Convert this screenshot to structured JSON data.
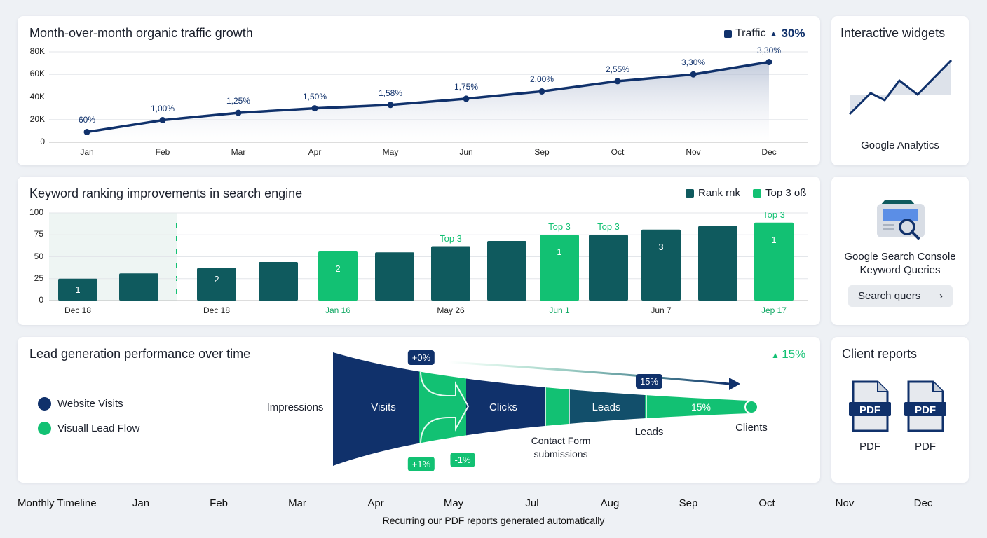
{
  "traffic": {
    "title": "Month-over-month organic traffic growth",
    "legend": "Traffic",
    "change": "30%",
    "color": "#10316b",
    "chart_data": {
      "type": "area",
      "x": [
        "Jan",
        "Feb",
        "Mar",
        "Apr",
        "May",
        "Jun",
        "Sep",
        "Oct",
        "Nov",
        "Dec"
      ],
      "values": [
        9000,
        19500,
        26000,
        30000,
        33000,
        38500,
        45000,
        54000,
        60000,
        71000
      ],
      "labels": [
        "60%",
        "1,00%",
        "1,25%",
        "1,50%",
        "1,58%",
        "1,75%",
        "2,00%",
        "2,55%",
        "3,30%",
        "3,30%"
      ],
      "yticks": [
        "0",
        "20K",
        "40K",
        "60K",
        "80K"
      ],
      "ylim": [
        0,
        80000
      ],
      "grid": true,
      "legend": "top-right"
    }
  },
  "ranking": {
    "title": "Keyword ranking improvements in search engine",
    "legend": [
      "Rank rnk",
      "Top 3 oß"
    ],
    "colors": {
      "rank": "#0f5a5e",
      "top3": "#12c173"
    },
    "chart_data": {
      "type": "bar",
      "values": [
        25,
        31,
        37,
        44,
        56,
        55,
        62,
        68,
        75,
        75,
        81,
        85,
        89
      ],
      "top3": [
        false,
        false,
        false,
        false,
        true,
        false,
        false,
        false,
        true,
        false,
        false,
        false,
        true
      ],
      "inner_labels": [
        "1",
        "",
        "2",
        "",
        "2",
        "",
        "",
        "",
        "1",
        "",
        "3",
        "",
        "1"
      ],
      "top_labels": [
        "",
        "",
        "",
        "",
        "",
        "",
        "Top 3",
        "",
        "Top 3",
        "Top 3",
        "",
        "",
        "Top 3"
      ],
      "xlabels": [
        "Dec 18",
        "",
        "Dec 18",
        "",
        "Jan 16",
        "",
        "May 26",
        "",
        "Jun 1",
        "",
        "Jun 7",
        "",
        "Jep 17"
      ],
      "yticks": [
        "0",
        "25",
        "50",
        "75",
        "100"
      ],
      "ylim": [
        0,
        100
      ],
      "grid": true,
      "legend": "top-right"
    }
  },
  "leads": {
    "title": "Lead generation performance over time",
    "change": "15%",
    "legend": [
      "Website Visits",
      "Visuall Lead Flow"
    ],
    "stages": {
      "impressions": "Impressions",
      "visits": "Visits",
      "clicks": "Clicks",
      "leads": "Leads",
      "pct": "15%",
      "contact": "Contact Form submissions",
      "leads2": "Leads",
      "clients": "Clients"
    },
    "badges": {
      "top": "+0%",
      "bottom1": "+1%",
      "bottom2": "-1%",
      "arrow": "15%"
    }
  },
  "widgets": {
    "title": "Interactive widgets",
    "label": "Google Analytics"
  },
  "console": {
    "label1": "Google Search Console",
    "label2": "Keyword Queries",
    "button": "Search quers"
  },
  "reports": {
    "title": "Client reports",
    "files": [
      "PDF",
      "PDF"
    ],
    "badge": "PDF"
  },
  "timeline": {
    "label": "Monthly Timeline",
    "months": [
      "Jan",
      "Feb",
      "Mar",
      "Apr",
      "May",
      "Jul",
      "Aug",
      "Sep",
      "Oct",
      "Nov",
      "Dec"
    ],
    "caption": "Recurring our PDF reports generated automatically"
  }
}
